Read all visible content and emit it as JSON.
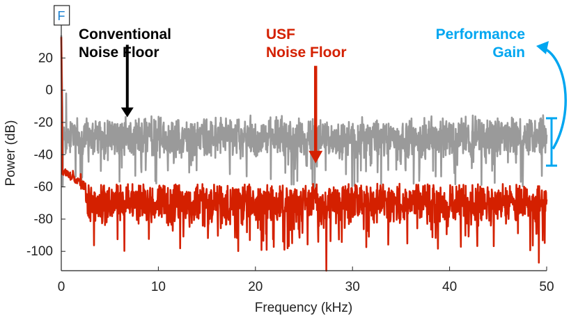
{
  "chart_data": {
    "type": "line",
    "title": "",
    "xlabel": "Frequency (kHz)",
    "ylabel": "Power (dB)",
    "xlim": [
      0,
      50
    ],
    "ylim": [
      -112,
      40
    ],
    "xticks": [
      0,
      10,
      20,
      30,
      40,
      50
    ],
    "yticks": [
      20,
      0,
      -20,
      -40,
      -60,
      -80,
      -100
    ],
    "grid": false,
    "series": [
      {
        "key": "conventional",
        "color": "#9a9a9a",
        "peak": {
          "x": 0.05,
          "y": 34
        },
        "features": [
          {
            "x": 0.5,
            "y": -2
          },
          {
            "x": 36.3,
            "y": -58
          }
        ],
        "noise_floor_mean": -29,
        "noise_floor_range": [
          -60,
          -15
        ]
      },
      {
        "key": "usf",
        "color": "#d42000",
        "peak": {
          "x": 0.05,
          "y": 33
        },
        "features": [
          {
            "x": 1.2,
            "y": -50
          },
          {
            "x": 2.0,
            "y": -52
          },
          {
            "x": 27.3,
            "y": -112
          },
          {
            "x": 49.2,
            "y": -107
          }
        ],
        "noise_floor_mean": -70,
        "noise_floor_range": [
          -100,
          -58
        ]
      }
    ],
    "annotations": {
      "conventional": {
        "line1": "Conventional",
        "line2": "Noise Floor",
        "color": "#000000",
        "arrow_x": 6.8,
        "arrow_y": [
          -15,
          -28
        ]
      },
      "usf": {
        "line1": "USF",
        "line2": "Noise Floor",
        "color": "#d42000",
        "arrow_x": 26.2,
        "arrow_y": [
          3,
          -67
        ]
      },
      "gain": {
        "line1": "Performance",
        "line2": "Gain",
        "color": "#00a6f0",
        "bracket_y": [
          -20,
          -52
        ]
      },
      "marker": {
        "text": "F",
        "x": 0.05,
        "color": "#1a7fd0"
      }
    }
  }
}
